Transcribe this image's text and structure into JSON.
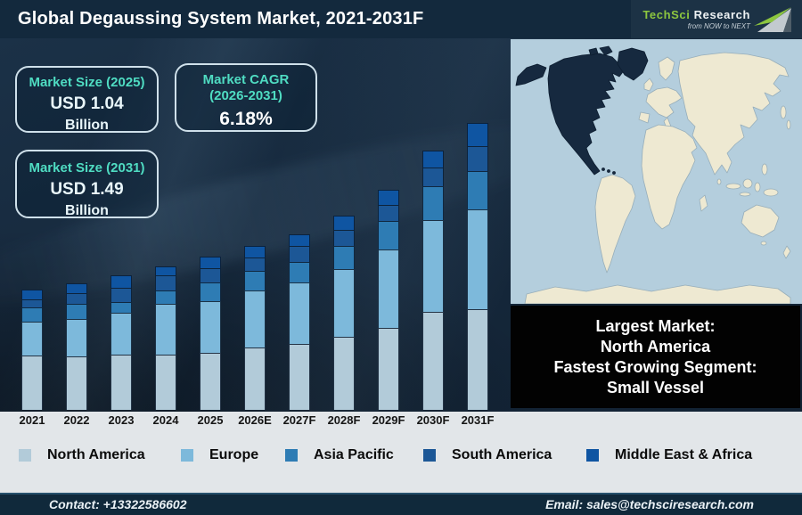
{
  "header": {
    "title": "Global Degaussing System Market, 2021-2031F",
    "logo": {
      "brand_primary": "TechSci",
      "brand_secondary": "Research",
      "tagline": "from NOW to NEXT",
      "accent_green": "#8dc63f"
    }
  },
  "callouts": {
    "size_2025": {
      "title": "Market Size (2025)",
      "value": "USD 1.04",
      "unit": "Billion"
    },
    "cagr": {
      "title_line1": "Market CAGR",
      "title_line2": "(2026-2031)",
      "value": "6.18%"
    },
    "size_2031": {
      "title": "Market Size (2031)",
      "value": "USD 1.49",
      "unit": "Billion"
    }
  },
  "chart_data": {
    "type": "bar",
    "stacked": true,
    "title": "Global Degaussing System Market, 2021-2031F",
    "xlabel": "",
    "ylabel": "",
    "grid": false,
    "legend_position": "bottom",
    "value_unit": "relative stacked-bar height in px (no numeric axis shown in image)",
    "categories": [
      "2021",
      "2022",
      "2023",
      "2024",
      "2025",
      "2026E",
      "2027F",
      "2028F",
      "2029F",
      "2030F",
      "2031F"
    ],
    "series": [
      {
        "name": "North America",
        "color": "#b2cbd9",
        "values": [
          61,
          60,
          62,
          62,
          64,
          70,
          74,
          82,
          92,
          110,
          113
        ]
      },
      {
        "name": "Europe",
        "color": "#7db9db",
        "values": [
          38,
          42,
          47,
          57,
          58,
          64,
          69,
          76,
          88,
          103,
          112
        ]
      },
      {
        "name": "Asia Pacific",
        "color": "#2e7cb4",
        "values": [
          16,
          17,
          12,
          15,
          21,
          22,
          23,
          26,
          32,
          38,
          43
        ]
      },
      {
        "name": "South America",
        "color": "#1c5796",
        "values": [
          9,
          12,
          16,
          17,
          16,
          15,
          18,
          18,
          18,
          21,
          28
        ]
      },
      {
        "name": "Middle East & Africa",
        "color": "#0f55a2",
        "values": [
          11,
          11,
          14,
          10,
          13,
          13,
          13,
          16,
          17,
          19,
          26
        ]
      }
    ],
    "annotations": [
      "Market Size (2025): USD 1.04 Billion",
      "Market CAGR (2026-2031): 6.18%",
      "Market Size (2031): USD 1.49 Billion"
    ]
  },
  "map": {
    "highlight_region": "North America",
    "highlight_color": "#16293f",
    "land_color": "#eee9d2",
    "ocean_color": "#b4cedd"
  },
  "info_box": {
    "lines": [
      "Largest Market:",
      "North America",
      "Fastest Growing Segment:",
      "Small Vessel"
    ]
  },
  "legend": [
    {
      "label": "North America",
      "color": "#b2cbd9"
    },
    {
      "label": "Europe",
      "color": "#7db9db"
    },
    {
      "label": "Asia Pacific",
      "color": "#2e7cb4"
    },
    {
      "label": "South America",
      "color": "#1c5796"
    },
    {
      "label": "Middle East & Africa",
      "color": "#0f55a2"
    }
  ],
  "footer": {
    "contact": "Contact: +13322586602",
    "email": "Email: sales@techsciresearch.com"
  }
}
